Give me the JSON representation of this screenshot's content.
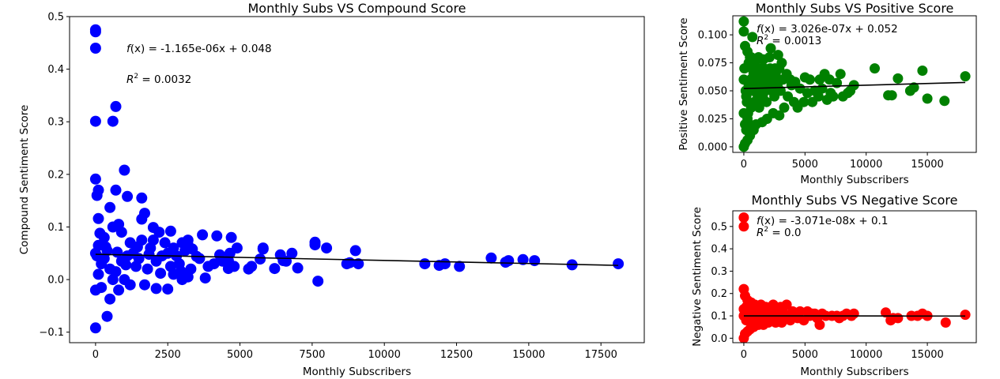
{
  "chart_data": [
    {
      "type": "scatter",
      "title": "Monthly Subs VS Compound Score",
      "xlabel": "Monthly Subscribers",
      "ylabel": "Compound Sentiment Score",
      "xlim": [
        -900,
        19000
      ],
      "ylim": [
        -0.12,
        0.5
      ],
      "xticks": [
        0,
        2500,
        5000,
        7500,
        10000,
        12500,
        15000,
        17500
      ],
      "yticks": [
        -0.1,
        0.0,
        0.1,
        0.2,
        0.3,
        0.4,
        0.5
      ],
      "ytick_decimals": 1,
      "color": "#0000ff",
      "grid": false,
      "annotation": {
        "fx_italic": "f",
        "fx_rest": "(x) = -1.165e-06x + 0.048",
        "r2_italic": "R",
        "r2_sup": "2",
        "r2_rest": " = 0.0032"
      },
      "fit": {
        "slope": -1.165e-06,
        "intercept": 0.048
      },
      "points": [
        [
          0,
          0.475
        ],
        [
          0,
          0.471
        ],
        [
          0,
          0.44
        ],
        [
          0,
          0.301
        ],
        [
          600,
          0.301
        ],
        [
          700,
          0.329
        ],
        [
          0,
          0.191
        ],
        [
          100,
          0.17
        ],
        [
          50,
          0.16
        ],
        [
          1000,
          0.208
        ],
        [
          700,
          0.17
        ],
        [
          1100,
          0.158
        ],
        [
          1600,
          0.155
        ],
        [
          1700,
          0.126
        ],
        [
          500,
          0.137
        ],
        [
          100,
          0.116
        ],
        [
          1600,
          0.115
        ],
        [
          2000,
          0.099
        ],
        [
          2200,
          0.09
        ],
        [
          2600,
          0.092
        ],
        [
          2400,
          0.07
        ],
        [
          2700,
          0.06
        ],
        [
          3000,
          0.07
        ],
        [
          3200,
          0.075
        ],
        [
          3200,
          0.066
        ],
        [
          3500,
          0.044
        ],
        [
          3700,
          0.085
        ],
        [
          4200,
          0.083
        ],
        [
          4300,
          0.047
        ],
        [
          4700,
          0.08
        ],
        [
          4600,
          0.036
        ],
        [
          4900,
          0.06
        ],
        [
          4600,
          0.021
        ],
        [
          4800,
          0.025
        ],
        [
          5300,
          0.02
        ],
        [
          5400,
          0.025
        ],
        [
          5800,
          0.06
        ],
        [
          5800,
          0.058
        ],
        [
          5700,
          0.039
        ],
        [
          6200,
          0.021
        ],
        [
          6400,
          0.047
        ],
        [
          6500,
          0.036
        ],
        [
          6600,
          0.035
        ],
        [
          6800,
          0.05
        ],
        [
          7000,
          0.022
        ],
        [
          7600,
          0.071
        ],
        [
          7600,
          0.066
        ],
        [
          8000,
          0.06
        ],
        [
          7700,
          -0.003
        ],
        [
          8700,
          0.03
        ],
        [
          8800,
          0.032
        ],
        [
          9000,
          0.055
        ],
        [
          9100,
          0.03
        ],
        [
          11400,
          0.03
        ],
        [
          11900,
          0.027
        ],
        [
          12100,
          0.03
        ],
        [
          12600,
          0.025
        ],
        [
          13700,
          0.041
        ],
        [
          14200,
          0.033
        ],
        [
          14300,
          0.036
        ],
        [
          14800,
          0.038
        ],
        [
          15200,
          0.036
        ],
        [
          16500,
          0.028
        ],
        [
          18100,
          0.03
        ],
        [
          0,
          -0.092
        ],
        [
          400,
          -0.07
        ],
        [
          500,
          -0.037
        ],
        [
          0,
          -0.02
        ],
        [
          200,
          -0.015
        ],
        [
          800,
          -0.02
        ],
        [
          1200,
          -0.01
        ],
        [
          1700,
          -0.01
        ],
        [
          2100,
          -0.017
        ],
        [
          2500,
          -0.018
        ],
        [
          2700,
          0.01
        ],
        [
          3000,
          0.0
        ],
        [
          3200,
          0.005
        ],
        [
          3800,
          0.003
        ],
        [
          4100,
          0.03
        ],
        [
          3900,
          0.025
        ],
        [
          2300,
          0.045
        ],
        [
          1900,
          0.06
        ],
        [
          1500,
          0.04
        ],
        [
          1200,
          0.07
        ],
        [
          900,
          0.09
        ],
        [
          300,
          0.08
        ],
        [
          600,
          0.1
        ],
        [
          800,
          0.105
        ],
        [
          400,
          0.055
        ],
        [
          200,
          0.03
        ],
        [
          100,
          0.01
        ],
        [
          700,
          0.015
        ],
        [
          1400,
          0.025
        ],
        [
          1800,
          0.02
        ],
        [
          2900,
          0.03
        ],
        [
          3300,
          0.02
        ],
        [
          2000,
          0.075
        ],
        [
          2500,
          0.05
        ],
        [
          2800,
          0.045
        ],
        [
          1100,
          0.045
        ],
        [
          0,
          0.05
        ],
        [
          100,
          0.065
        ],
        [
          300,
          0.04
        ],
        [
          500,
          0.02
        ],
        [
          900,
          0.035
        ],
        [
          1300,
          0.05
        ],
        [
          1600,
          0.075
        ],
        [
          2100,
          0.035
        ],
        [
          2600,
          0.025
        ],
        [
          3100,
          0.055
        ],
        [
          3600,
          0.04
        ],
        [
          1000,
          0.0
        ],
        [
          600,
          0.0
        ],
        [
          150,
          0.088
        ],
        [
          50,
          0.045
        ],
        [
          350,
          0.062
        ],
        [
          750,
          0.052
        ],
        [
          1050,
          0.028
        ],
        [
          1450,
          0.062
        ],
        [
          1850,
          0.048
        ],
        [
          2250,
          0.012
        ],
        [
          2950,
          0.016
        ],
        [
          3350,
          0.058
        ],
        [
          4400,
          0.035
        ],
        [
          4650,
          0.05
        ]
      ]
    },
    {
      "type": "scatter",
      "title": "Monthly Subs VS Positive Score",
      "xlabel": "Monthly Subscribers",
      "ylabel": "Positive Sentiment Score",
      "xlim": [
        -900,
        19000
      ],
      "ylim": [
        -0.005,
        0.117
      ],
      "xticks": [
        0,
        5000,
        10000,
        15000
      ],
      "yticks": [
        0.0,
        0.025,
        0.05,
        0.075,
        0.1
      ],
      "ytick_decimals": 3,
      "color": "#008000",
      "grid": false,
      "annotation": {
        "fx_italic": "f",
        "fx_rest": "(x) = 3.026e-07x + 0.052",
        "r2_italic": "R",
        "r2_sup": "2",
        "r2_rest": " = 0.0013"
      },
      "fit": {
        "slope": 3.026e-07,
        "intercept": 0.052
      },
      "points": [
        [
          0,
          0.112
        ],
        [
          0,
          0.103
        ],
        [
          700,
          0.098
        ],
        [
          100,
          0.09
        ],
        [
          300,
          0.085
        ],
        [
          500,
          0.08
        ],
        [
          1200,
          0.08
        ],
        [
          1600,
          0.078
        ],
        [
          2100,
          0.08
        ],
        [
          2200,
          0.088
        ],
        [
          2800,
          0.082
        ],
        [
          2900,
          0.07
        ],
        [
          3100,
          0.075
        ],
        [
          3500,
          0.065
        ],
        [
          3800,
          0.06
        ],
        [
          4200,
          0.058
        ],
        [
          5000,
          0.062
        ],
        [
          5400,
          0.06
        ],
        [
          6200,
          0.06
        ],
        [
          6600,
          0.065
        ],
        [
          7000,
          0.06
        ],
        [
          7300,
          0.045
        ],
        [
          7600,
          0.057
        ],
        [
          7900,
          0.065
        ],
        [
          8700,
          0.05
        ],
        [
          9000,
          0.055
        ],
        [
          10700,
          0.07
        ],
        [
          11800,
          0.046
        ],
        [
          12100,
          0.046
        ],
        [
          12600,
          0.061
        ],
        [
          13600,
          0.05
        ],
        [
          13900,
          0.053
        ],
        [
          14600,
          0.068
        ],
        [
          15000,
          0.043
        ],
        [
          16400,
          0.041
        ],
        [
          18100,
          0.063
        ],
        [
          0,
          0.0
        ],
        [
          100,
          0.003
        ],
        [
          300,
          0.006
        ],
        [
          500,
          0.01
        ],
        [
          800,
          0.015
        ],
        [
          1000,
          0.02
        ],
        [
          1500,
          0.022
        ],
        [
          1900,
          0.025
        ],
        [
          2400,
          0.03
        ],
        [
          2900,
          0.028
        ],
        [
          3300,
          0.035
        ],
        [
          4100,
          0.04
        ],
        [
          4400,
          0.035
        ],
        [
          4900,
          0.04
        ],
        [
          5600,
          0.04
        ],
        [
          6100,
          0.045
        ],
        [
          6800,
          0.042
        ],
        [
          2500,
          0.045
        ],
        [
          3000,
          0.05
        ],
        [
          3600,
          0.045
        ],
        [
          4600,
          0.052
        ],
        [
          5200,
          0.048
        ],
        [
          5800,
          0.05
        ],
        [
          6400,
          0.052
        ],
        [
          7100,
          0.048
        ],
        [
          8100,
          0.045
        ],
        [
          8500,
          0.048
        ],
        [
          1800,
          0.06
        ],
        [
          1300,
          0.07
        ],
        [
          800,
          0.065
        ],
        [
          400,
          0.055
        ],
        [
          200,
          0.045
        ],
        [
          600,
          0.035
        ],
        [
          1100,
          0.04
        ],
        [
          1400,
          0.05
        ],
        [
          1700,
          0.055
        ],
        [
          2000,
          0.06
        ],
        [
          2300,
          0.05
        ],
        [
          2600,
          0.065
        ],
        [
          3200,
          0.06
        ],
        [
          3900,
          0.055
        ],
        [
          0,
          0.06
        ],
        [
          50,
          0.07
        ],
        [
          150,
          0.05
        ],
        [
          250,
          0.04
        ],
        [
          350,
          0.03
        ],
        [
          450,
          0.02
        ],
        [
          550,
          0.06
        ],
        [
          650,
          0.07
        ],
        [
          750,
          0.05
        ],
        [
          850,
          0.04
        ],
        [
          950,
          0.055
        ],
        [
          1050,
          0.06
        ],
        [
          1150,
          0.045
        ],
        [
          1250,
          0.035
        ],
        [
          1350,
          0.065
        ],
        [
          1450,
          0.055
        ],
        [
          1550,
          0.045
        ],
        [
          1650,
          0.07
        ],
        [
          1750,
          0.05
        ],
        [
          1850,
          0.04
        ],
        [
          1950,
          0.065
        ],
        [
          2050,
          0.055
        ],
        [
          2150,
          0.07
        ],
        [
          2250,
          0.06
        ],
        [
          2350,
          0.055
        ],
        [
          2450,
          0.05
        ],
        [
          2550,
          0.07
        ],
        [
          2650,
          0.06
        ],
        [
          2750,
          0.055
        ],
        [
          0,
          0.03
        ],
        [
          100,
          0.02
        ],
        [
          200,
          0.015
        ],
        [
          300,
          0.025
        ],
        [
          400,
          0.075
        ],
        [
          500,
          0.05
        ],
        [
          600,
          0.08
        ],
        [
          700,
          0.06
        ],
        [
          900,
          0.075
        ],
        [
          1000,
          0.065
        ]
      ]
    },
    {
      "type": "scatter",
      "title": "Monthly Subs VS Negative Score",
      "xlabel": "Monthly Subscribers",
      "ylabel": "Negative Sentiment Score",
      "xlim": [
        -900,
        19000
      ],
      "ylim": [
        -0.02,
        0.57
      ],
      "xticks": [
        0,
        5000,
        10000,
        15000
      ],
      "yticks": [
        0.0,
        0.1,
        0.2,
        0.3,
        0.4,
        0.5
      ],
      "ytick_decimals": 1,
      "color": "#ff0000",
      "grid": false,
      "annotation": {
        "fx_italic": "f",
        "fx_rest": "(x) = -3.071e-08x + 0.1",
        "r2_italic": "R",
        "r2_sup": "2",
        "r2_rest": " = 0.0"
      },
      "fit": {
        "slope": -3.071e-08,
        "intercept": 0.1
      },
      "points": [
        [
          0,
          0.54
        ],
        [
          0,
          0.5
        ],
        [
          0,
          0.22
        ],
        [
          100,
          0.19
        ],
        [
          300,
          0.17
        ],
        [
          600,
          0.16
        ],
        [
          900,
          0.15
        ],
        [
          1400,
          0.15
        ],
        [
          1800,
          0.14
        ],
        [
          2400,
          0.15
        ],
        [
          3000,
          0.14
        ],
        [
          3500,
          0.15
        ],
        [
          4000,
          0.12
        ],
        [
          4600,
          0.12
        ],
        [
          5200,
          0.12
        ],
        [
          5600,
          0.11
        ],
        [
          6000,
          0.09
        ],
        [
          6200,
          0.06
        ],
        [
          6700,
          0.1
        ],
        [
          7200,
          0.1
        ],
        [
          7600,
          0.1
        ],
        [
          7800,
          0.09
        ],
        [
          8100,
          0.1
        ],
        [
          8800,
          0.1
        ],
        [
          9000,
          0.11
        ],
        [
          11600,
          0.115
        ],
        [
          12000,
          0.08
        ],
        [
          12200,
          0.09
        ],
        [
          12600,
          0.09
        ],
        [
          13700,
          0.1
        ],
        [
          14200,
          0.1
        ],
        [
          14600,
          0.11
        ],
        [
          15000,
          0.1
        ],
        [
          16500,
          0.07
        ],
        [
          18100,
          0.105
        ],
        [
          0,
          0.0
        ],
        [
          100,
          0.02
        ],
        [
          300,
          0.03
        ],
        [
          500,
          0.04
        ],
        [
          800,
          0.05
        ],
        [
          1200,
          0.06
        ],
        [
          1600,
          0.06
        ],
        [
          2000,
          0.07
        ],
        [
          2600,
          0.07
        ],
        [
          3100,
          0.07
        ],
        [
          3800,
          0.08
        ],
        [
          4400,
          0.09
        ],
        [
          4900,
          0.08
        ],
        [
          500,
          0.12
        ],
        [
          1000,
          0.11
        ],
        [
          1500,
          0.1
        ],
        [
          2000,
          0.1
        ],
        [
          2500,
          0.11
        ],
        [
          3000,
          0.09
        ],
        [
          3600,
          0.1
        ],
        [
          4200,
          0.1
        ],
        [
          200,
          0.08
        ],
        [
          700,
          0.09
        ],
        [
          1300,
          0.13
        ],
        [
          1900,
          0.12
        ],
        [
          2800,
          0.12
        ],
        [
          3300,
          0.11
        ],
        [
          0,
          0.1
        ],
        [
          0,
          0.13
        ],
        [
          200,
          0.14
        ],
        [
          400,
          0.1
        ],
        [
          600,
          0.07
        ],
        [
          800,
          0.11
        ],
        [
          1100,
          0.09
        ],
        [
          1700,
          0.08
        ],
        [
          2200,
          0.09
        ],
        [
          5400,
          0.1
        ],
        [
          5800,
          0.11
        ],
        [
          6400,
          0.11
        ],
        [
          8400,
          0.11
        ]
      ]
    }
  ]
}
